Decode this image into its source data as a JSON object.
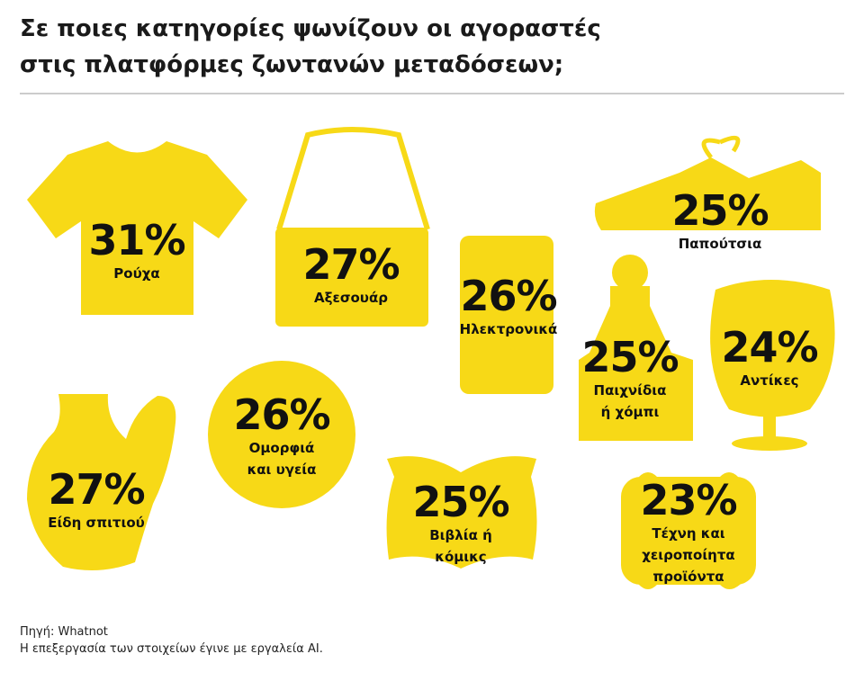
{
  "header": {
    "title": [
      "Σε ποιες κατηγορίες ψωνίζουν οι αγοραστές",
      "στις πλατφόρμες ζωντανών μεταδόσεων;"
    ]
  },
  "items": [
    {
      "value": "31%",
      "label": [
        "Ρούχα"
      ]
    },
    {
      "value": "27%",
      "label": [
        "Αξεσουάρ"
      ]
    },
    {
      "value": "26%",
      "label": [
        "Ηλεκτρονικά"
      ]
    },
    {
      "value": "25%",
      "label": [
        "Παπούτσια"
      ]
    },
    {
      "value": "25%",
      "label": [
        "Παιχνίδια",
        "ή χόμπι"
      ]
    },
    {
      "value": "24%",
      "label": [
        "Αντίκες"
      ]
    },
    {
      "value": "27%",
      "label": [
        "Είδη σπιτιού"
      ]
    },
    {
      "value": "26%",
      "label": [
        "Ομορφιά",
        "και υγεία"
      ]
    },
    {
      "value": "25%",
      "label": [
        "Βιβλία ή",
        "κόμικς"
      ]
    },
    {
      "value": "23%",
      "label": [
        "Τέχνη και",
        "χειροποίητα",
        "προϊόντα"
      ]
    }
  ],
  "footer": {
    "source": "Πηγή: Whatnot",
    "note": "Η επεξεργασία των στοιχείων έγινε με εργαλεία AI."
  }
}
